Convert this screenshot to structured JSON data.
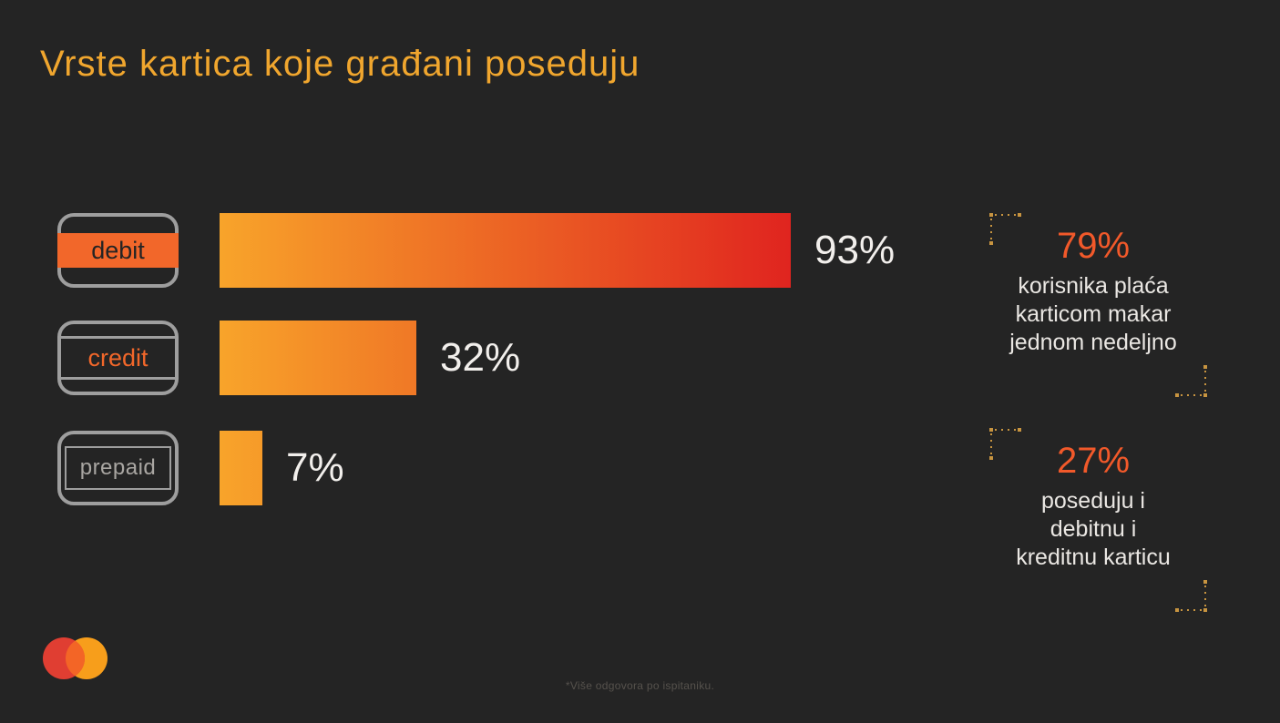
{
  "slide": {
    "title": "Vrste kartica koje građani poseduju",
    "footnote": "*Više odgovora po ispitaniku.",
    "colors": {
      "background": "#242424",
      "title_color": "#F0A62E",
      "accent_orange": "#F2672A",
      "bar_start": "#F8A42A",
      "bar_end": "#E0241F",
      "value_text": "#F2EFEC",
      "body_text": "#EAE7E3",
      "card_border": "#9E9E9E",
      "corner_color": "#C79440",
      "muted_text": "#56524D",
      "stat_value_color": "#F2592A",
      "mc_red": "#E03E32",
      "mc_orange": "#F79E1B",
      "mc_overlap": "#F36526"
    },
    "chart_data": {
      "type": "bar",
      "orientation": "horizontal",
      "title": "Vrste kartica koje građani poseduju",
      "categories": [
        "debit",
        "credit",
        "prepaid"
      ],
      "values": [
        93,
        32,
        7
      ],
      "value_labels": [
        "93%",
        "32%",
        "7%"
      ],
      "xlim": [
        0,
        100
      ],
      "grid": false,
      "legend": false,
      "bar_color_gradient": [
        "#F8A42A",
        "#E0241F"
      ],
      "annotations": [
        "79% korisnika plaća karticom makar jednom nedeljno",
        "27% poseduju i debitnu i kreditnu karticu"
      ]
    },
    "stats": [
      {
        "value": "79%",
        "line1": "korisnika plaća",
        "line2": "karticom makar",
        "line3": "jednom nedeljno"
      },
      {
        "value": "27%",
        "line1": "poseduju i",
        "line2": "debitnu i",
        "line3": "kreditnu karticu"
      }
    ],
    "logo": "mastercard-logo"
  }
}
